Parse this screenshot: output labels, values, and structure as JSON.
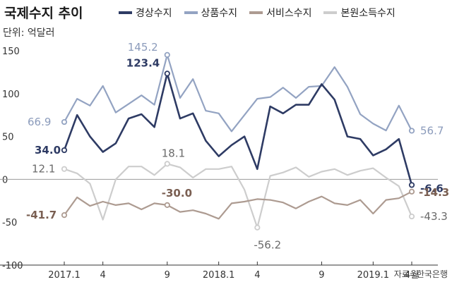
{
  "chart_data": {
    "type": "line",
    "title": "국제수지 추이",
    "unit_label": "단위: 억달러",
    "source": "자료=한국은행",
    "x": [
      "2017.1",
      "2",
      "3",
      "4",
      "5",
      "6",
      "7",
      "8",
      "9",
      "10",
      "11",
      "12",
      "2018.1",
      "2",
      "3",
      "4",
      "5",
      "6",
      "7",
      "8",
      "9",
      "10",
      "11",
      "12",
      "2019.1",
      "2",
      "3",
      "4월"
    ],
    "x_tick_labels": [
      {
        "index": 0,
        "label": "2017.1"
      },
      {
        "index": 3,
        "label": "4"
      },
      {
        "index": 8,
        "label": "9"
      },
      {
        "index": 12,
        "label": "2018.1"
      },
      {
        "index": 15,
        "label": "4"
      },
      {
        "index": 20,
        "label": "9"
      },
      {
        "index": 24,
        "label": "2019.1"
      },
      {
        "index": 27,
        "label": "4월"
      }
    ],
    "y_ticks": [
      150,
      100,
      50,
      0,
      -50,
      -100
    ],
    "ylim": [
      -100,
      150
    ],
    "grid": false,
    "legend_position": "top",
    "series": [
      {
        "name": "경상수지",
        "color": "#2e3b64",
        "values": [
          34.0,
          75,
          50,
          32,
          42,
          71,
          76,
          61,
          123.4,
          71,
          77,
          45,
          27,
          40,
          50,
          12,
          85,
          77,
          87,
          87,
          111,
          93,
          50,
          47,
          28,
          35,
          47,
          -6.6
        ],
        "data_labels": [
          {
            "index": 0,
            "text": "34.0"
          },
          {
            "index": 8,
            "text": "123.4"
          },
          {
            "index": 27,
            "text": "-6.6"
          }
        ]
      },
      {
        "name": "상품수지",
        "color": "#93a3c2",
        "values": [
          66.9,
          94,
          86,
          109,
          78,
          88,
          98,
          87,
          145.2,
          95,
          117,
          80,
          77,
          56,
          75,
          94,
          96,
          107,
          95,
          108,
          109,
          131,
          108,
          76,
          65,
          57,
          86,
          56.7
        ],
        "data_labels": [
          {
            "index": 0,
            "text": "66.9"
          },
          {
            "index": 8,
            "text": "145.2"
          },
          {
            "index": 27,
            "text": "56.7"
          }
        ]
      },
      {
        "name": "서비스수지",
        "color": "#ad9b91",
        "values": [
          -41.7,
          -21,
          -31,
          -26,
          -30,
          -28,
          -35,
          -28,
          -30.0,
          -38,
          -36,
          -40,
          -46,
          -28,
          -26,
          -23,
          -24,
          -27,
          -34,
          -26,
          -20,
          -28,
          -30,
          -24,
          -40,
          -24,
          -22,
          -14.3
        ],
        "data_labels": [
          {
            "index": 0,
            "text": "-41.7"
          },
          {
            "index": 8,
            "text": "-30.0"
          },
          {
            "index": 27,
            "text": "-14.3"
          }
        ]
      },
      {
        "name": "본원소득수지",
        "color": "#cdcdcd",
        "values": [
          12.1,
          7,
          -5,
          -47,
          0,
          15,
          15,
          5,
          18.1,
          14,
          2,
          12,
          12,
          15,
          -12,
          -56.2,
          4,
          8,
          14,
          3,
          9,
          12,
          5,
          10,
          13,
          2,
          -8,
          -43.3
        ],
        "data_labels": [
          {
            "index": 0,
            "text": "12.1"
          },
          {
            "index": 8,
            "text": "18.1"
          },
          {
            "index": 15,
            "text": "-56.2"
          },
          {
            "index": 27,
            "text": "-43.3"
          }
        ]
      }
    ]
  }
}
